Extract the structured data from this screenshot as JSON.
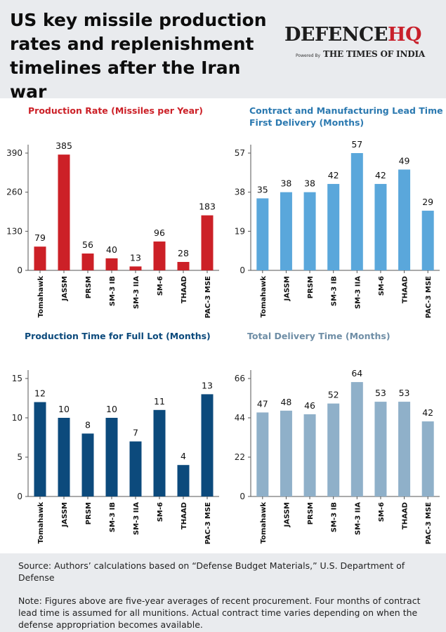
{
  "title": "US key missile production rates and replenishment timelines after the Iran war",
  "brand": {
    "name_part1": "DEFENCE",
    "name_part2": "HQ",
    "powered_by": "Powered By",
    "partner": "THE TIMES OF INDIA"
  },
  "colors": {
    "red": "#cc2027",
    "light_blue": "#5aa7db",
    "navy": "#0c4a7c",
    "grey_blue": "#8fb0c9"
  },
  "source": "Source: Authors’ calculations based on “Defense Budget Materials,” U.S. Department of Defense",
  "note": "Note: Figures above are five-year averages of recent procurement. Four months of contract lead time is assumed for all munitions. Actual contract time varies depending on when the defense appropriation becomes available.",
  "chart_data": [
    {
      "type": "bar",
      "title": "Production Rate (Missiles per Year)",
      "categories": [
        "Tomahawk",
        "JASSM",
        "PRSM",
        "SM-3 IB",
        "SM-3 IIA",
        "SM-6",
        "THAAD",
        "PAC-3 MSE"
      ],
      "values": [
        79,
        385,
        56,
        40,
        13,
        96,
        28,
        183
      ],
      "yticks": [
        0,
        130,
        260,
        390
      ],
      "ylim": [
        0,
        390
      ],
      "grid": false,
      "color": "#cc2027",
      "title_color": "#cc2027"
    },
    {
      "type": "bar",
      "title": "Contract and Manufacturing Lead Time to First Delivery (Months)",
      "categories": [
        "Tomahawk",
        "JASSM",
        "PRSM",
        "SM-3 IB",
        "SM-3 IIA",
        "SM-6",
        "THAAD",
        "PAC-3 MSE"
      ],
      "values": [
        35,
        38,
        38,
        42,
        57,
        42,
        49,
        29
      ],
      "yticks": [
        0,
        19,
        38,
        57
      ],
      "ylim": [
        0,
        57
      ],
      "grid": false,
      "color": "#5aa7db",
      "title_color": "#2b79b0"
    },
    {
      "type": "bar",
      "title": "Production Time for Full Lot (Months)",
      "categories": [
        "Tomahawk",
        "JASSM",
        "PRSM",
        "SM-3 IB",
        "SM-3 IIA",
        "SM-6",
        "THAAD",
        "PAC-3 MSE"
      ],
      "values": [
        12,
        10,
        8,
        10,
        7,
        11,
        4,
        13
      ],
      "yticks": [
        0,
        5,
        10,
        15
      ],
      "ylim": [
        0,
        15
      ],
      "grid": false,
      "color": "#0c4a7c",
      "title_color": "#0c4a7c"
    },
    {
      "type": "bar",
      "title": "Total Delivery Time (Months)",
      "categories": [
        "Tomahawk",
        "JASSM",
        "PRSM",
        "SM-3 IB",
        "SM-3 IIA",
        "SM-6",
        "THAAD",
        "PAC-3 MSE"
      ],
      "values": [
        47,
        48,
        46,
        52,
        64,
        53,
        53,
        42
      ],
      "yticks": [
        0,
        22,
        44,
        66
      ],
      "ylim": [
        0,
        66
      ],
      "grid": false,
      "color": "#8fb0c9",
      "title_color": "#6f8ea6"
    }
  ]
}
